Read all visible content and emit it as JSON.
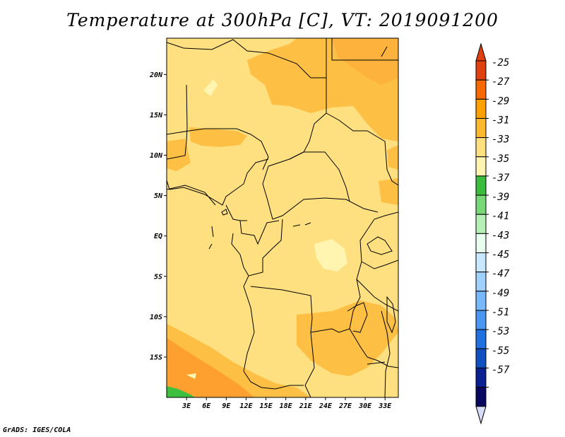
{
  "title": "Temperature at 300hPa [C], VT: 2019091200",
  "credit": "GrADS: IGES/COLA",
  "colors": {
    "base": "#fee080",
    "warm1": "#fec044",
    "warm2": "#fea030",
    "pale": "#fff4b0",
    "green": "#3fbf3f",
    "border": "#000000"
  },
  "map": {
    "lon_range": [
      0,
      35
    ],
    "lat_range": [
      -20,
      24.5
    ],
    "lon_ticks": [
      "3E",
      "6E",
      "9E",
      "12E",
      "15E",
      "18E",
      "21E",
      "24E",
      "27E",
      "30E",
      "33E"
    ],
    "lat_ticks": [
      "20N",
      "15N",
      "10N",
      "5N",
      "EQ",
      "5S",
      "10S",
      "15S"
    ]
  },
  "colorbar": {
    "labels": [
      "-25",
      "-27",
      "-29",
      "-31",
      "-33",
      "-35",
      "-37",
      "-39",
      "-41",
      "-43",
      "-45",
      "-47",
      "-49",
      "-51",
      "-53",
      "-55",
      "-57"
    ],
    "colors": [
      "#e04010",
      "#f86800",
      "#fea000",
      "#feb830",
      "#fee080",
      "#fff4b0",
      "#3cbc3c",
      "#78d878",
      "#b4f0b4",
      "#e8fff0",
      "#c8e8ff",
      "#a0d0ff",
      "#78b8ff",
      "#4a96f0",
      "#2070e0",
      "#1050c0",
      "#0a2090",
      "#080860"
    ],
    "top_color": "#e04010",
    "bottom_color": "#d8dcf8"
  }
}
